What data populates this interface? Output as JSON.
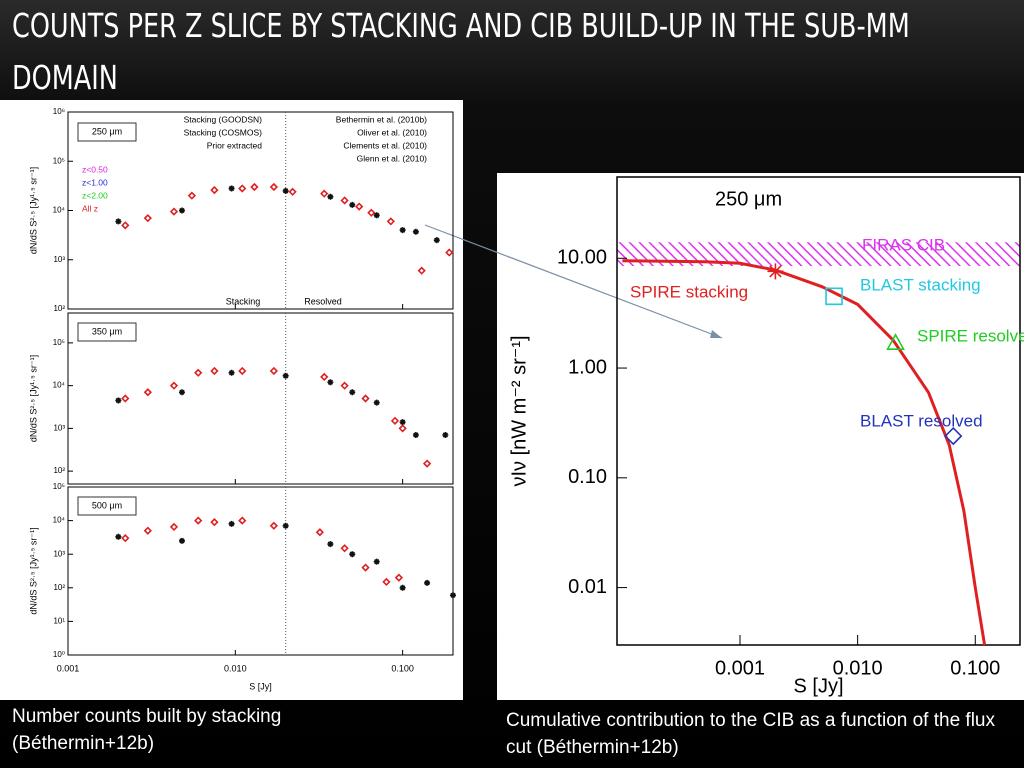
{
  "title": "COUNTS PER Z SLICE BY STACKING AND CIB BUILD-UP IN THE SUB-MM DOMAIN",
  "captions": [
    "Number counts built by stacking (Béthermin+12b)",
    "Cumulative contribution to the CIB as a function of the flux cut (Béthermin+12b)"
  ],
  "chart_data": [
    {
      "type": "scatter",
      "log": true,
      "ylabel": "dN/dS S²·⁵ [Jy¹·⁵ sr⁻¹]",
      "annotations": [
        "250 μm",
        "Stacking",
        "Resolved"
      ],
      "legend_entries": [
        "Stacking (GOODSN)",
        "Stacking (COSMOS)",
        "Prior extracted",
        "Bethermin et al. (2010b)",
        "Oliver et al. (2010)",
        "Clements et al. (2010)"
      ],
      "z_labels": [
        {
          "text": "z<0.50",
          "color": "#dd22dd"
        },
        {
          "text": "z<1.00",
          "color": "#2233cc"
        },
        {
          "text": "z<2.00",
          "color": "#22cc22"
        }
      ],
      "divider_x": 0.02,
      "xlim": [
        0.001,
        0.2
      ],
      "ylim": [
        100,
        1000000
      ],
      "yticks": [
        {
          "value": 100,
          "label": "10²"
        },
        {
          "value": 1000,
          "label": "10³"
        },
        {
          "value": 10000,
          "label": "10⁴"
        },
        {
          "value": 100000,
          "label": "10⁵"
        },
        {
          "value": 1000000,
          "label": "10⁶"
        }
      ],
      "series": [
        {
          "name": "All z",
          "color": "#e02020",
          "marker": "diamond",
          "x": [
            0.0022,
            0.003,
            0.0043,
            0.0055,
            0.0075,
            0.011,
            0.013,
            0.017,
            0.022,
            0.034,
            0.045,
            0.055,
            0.065,
            0.085,
            0.13,
            0.19
          ],
          "values": [
            5000,
            7000,
            9500,
            20000,
            26000,
            28000,
            30000,
            30000,
            24000,
            22000,
            16000,
            12000,
            9000,
            6000,
            600,
            1400
          ]
        },
        {
          "name": "Glenn et al. (2010)",
          "color": "#111111",
          "marker": "star",
          "x": [
            0.002,
            0.0048,
            0.0095,
            0.02,
            0.037,
            0.05,
            0.07,
            0.1,
            0.12,
            0.16
          ],
          "values": [
            6000,
            10000,
            28000,
            25000,
            19000,
            13000,
            8000,
            4000,
            3700,
            2500
          ]
        }
      ]
    },
    {
      "type": "scatter",
      "log": true,
      "ylabel": "dN/dS S²·⁵ [Jy¹·⁵ sr⁻¹]",
      "annotations": [
        "350 μm"
      ],
      "divider_x": 0.02,
      "xlim": [
        0.001,
        0.2
      ],
      "ylim": [
        50,
        500000
      ],
      "yticks": [
        {
          "value": 100,
          "label": "10²"
        },
        {
          "value": 1000,
          "label": "10³"
        },
        {
          "value": 10000,
          "label": "10⁴"
        },
        {
          "value": 100000,
          "label": "10⁵"
        }
      ],
      "series": [
        {
          "color": "#e02020",
          "marker": "diamond",
          "x": [
            0.0022,
            0.003,
            0.0043,
            0.006,
            0.0075,
            0.011,
            0.017,
            0.034,
            0.045,
            0.06,
            0.09,
            0.1,
            0.14
          ],
          "values": [
            5000,
            7000,
            10000,
            20000,
            22000,
            22000,
            22000,
            16000,
            10000,
            5000,
            1500,
            1000,
            150
          ]
        },
        {
          "color": "#111111",
          "marker": "star",
          "x": [
            0.002,
            0.0048,
            0.0095,
            0.02,
            0.037,
            0.05,
            0.07,
            0.1,
            0.12,
            0.18
          ],
          "values": [
            4500,
            7000,
            20000,
            17000,
            12000,
            7000,
            4000,
            1400,
            700,
            700
          ]
        }
      ]
    },
    {
      "type": "scatter",
      "log": true,
      "ylabel": "dN/dS S²·⁵ [Jy¹·⁵ sr⁻¹]",
      "xlabel": "S [Jy]",
      "annotations": [
        "500 μm"
      ],
      "divider_x": 0.02,
      "xlim": [
        0.001,
        0.2
      ],
      "ylim": [
        1,
        100000
      ],
      "xticks": [
        {
          "value": 0.001,
          "label": "0.001"
        },
        {
          "value": 0.01,
          "label": "0.010"
        },
        {
          "value": 0.1,
          "label": "0.100"
        }
      ],
      "yticks": [
        {
          "value": 1,
          "label": "10⁰"
        },
        {
          "value": 10,
          "label": "10¹"
        },
        {
          "value": 100,
          "label": "10²"
        },
        {
          "value": 1000,
          "label": "10³"
        },
        {
          "value": 10000,
          "label": "10⁴"
        },
        {
          "value": 100000,
          "label": "10⁵"
        }
      ],
      "series": [
        {
          "color": "#e02020",
          "marker": "diamond",
          "x": [
            0.0022,
            0.003,
            0.0043,
            0.006,
            0.0075,
            0.011,
            0.017,
            0.032,
            0.045,
            0.06,
            0.08,
            0.095
          ],
          "values": [
            3000,
            5000,
            6500,
            10000,
            9000,
            10000,
            7000,
            4500,
            1500,
            400,
            150,
            200
          ]
        },
        {
          "color": "#111111",
          "marker": "star",
          "x": [
            0.002,
            0.0048,
            0.0095,
            0.02,
            0.037,
            0.05,
            0.07,
            0.1,
            0.14,
            0.2
          ],
          "values": [
            3300,
            2500,
            8000,
            7000,
            2000,
            1000,
            600,
            100,
            140,
            60
          ]
        }
      ]
    },
    {
      "type": "line",
      "log": true,
      "ylabel": "νIν [nW m⁻² sr⁻¹]",
      "xlabel": "S [Jy]",
      "annotations": [
        "250 μm",
        "FIRAS CIB"
      ],
      "firas_band": [
        8.5,
        14
      ],
      "band_color": "#dd33ee",
      "xlim": [
        9e-05,
        0.24
      ],
      "ylim": [
        0.003,
        55
      ],
      "xticks": [
        {
          "value": 0.001,
          "label": "0.001"
        },
        {
          "value": 0.01,
          "label": "0.010"
        },
        {
          "value": 0.1,
          "label": "0.100"
        }
      ],
      "yticks": [
        {
          "value": 0.01,
          "label": "0.01"
        },
        {
          "value": 0.1,
          "label": "0.10"
        },
        {
          "value": 1,
          "label": "1.00"
        },
        {
          "value": 10,
          "label": "10.00"
        }
      ],
      "series": [
        {
          "name": "SPIRE stacking",
          "color": "#e02020",
          "marker": "line",
          "x": [
            0.0001,
            0.0005,
            0.001,
            0.002,
            0.005,
            0.01,
            0.02,
            0.04,
            0.06,
            0.08,
            0.1,
            0.12
          ],
          "values": [
            9.5,
            9.3,
            9,
            7.8,
            5.5,
            3.8,
            1.8,
            0.6,
            0.2,
            0.05,
            0.01,
            0.003
          ]
        },
        {
          "name": "BLAST stacking",
          "color": "#22c8e0",
          "marker": "square",
          "x": [
            0.0063
          ],
          "values": [
            4.5
          ]
        },
        {
          "name": "SPIRE resolved",
          "color": "#22cc22",
          "marker": "triangle",
          "x": [
            0.021
          ],
          "values": [
            1.7
          ]
        },
        {
          "name": "BLAST resolved",
          "color": "#2233bb",
          "marker": "diamond",
          "x": [
            0.065
          ],
          "values": [
            0.24
          ]
        },
        {
          "color": "#e02020",
          "marker": "star",
          "x": [
            0.002
          ],
          "values": [
            7.6
          ]
        }
      ]
    }
  ]
}
